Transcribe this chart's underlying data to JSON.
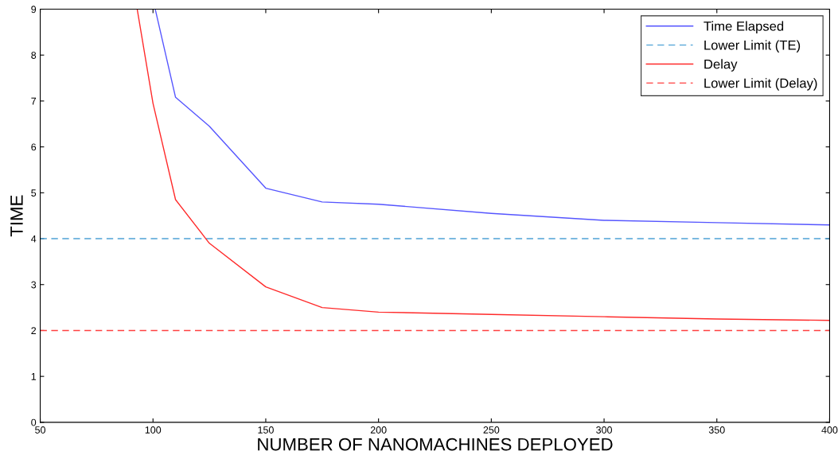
{
  "chart_data": {
    "type": "line",
    "xlabel": "NUMBER OF NANOMACHINES DEPLOYED",
    "ylabel": "TIME",
    "xlim": [
      50,
      400
    ],
    "ylim": [
      0,
      9
    ],
    "xticks": [
      50,
      100,
      150,
      200,
      250,
      300,
      350,
      400
    ],
    "yticks": [
      0,
      1,
      2,
      3,
      4,
      5,
      6,
      7,
      8,
      9
    ],
    "grid": false,
    "legend": "top right",
    "marker": "none",
    "series": [
      {
        "name": "Time Elapsed",
        "color": "#5555ff",
        "line_style": "solid",
        "x": [
          101,
          110,
          125,
          150,
          175,
          200,
          250,
          300,
          350,
          400
        ],
        "values": [
          9,
          7.08,
          6.45,
          5.1,
          4.8,
          4.75,
          4.55,
          4.4,
          4.35,
          4.3
        ]
      },
      {
        "name": "Lower Limit (TE)",
        "color": "#4fa3d6",
        "line_style": "dashed",
        "x": [
          50,
          400
        ],
        "values": [
          4,
          4
        ]
      },
      {
        "name": "Delay",
        "color": "#ff2a2a",
        "line_style": "solid",
        "x": [
          93,
          100,
          110,
          125,
          150,
          175,
          200,
          250,
          300,
          350,
          400
        ],
        "values": [
          9,
          6.95,
          4.85,
          3.9,
          2.95,
          2.5,
          2.4,
          2.35,
          2.3,
          2.25,
          2.22
        ]
      },
      {
        "name": "Lower Limit (Delay)",
        "color": "#ff4040",
        "line_style": "dashed",
        "x": [
          50,
          400
        ],
        "values": [
          2,
          2
        ]
      }
    ]
  }
}
